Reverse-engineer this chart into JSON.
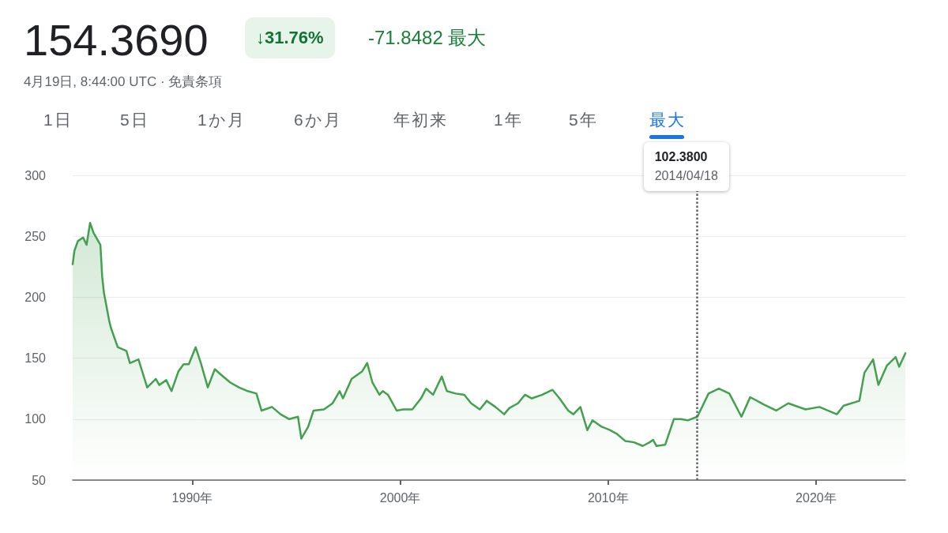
{
  "chart_data": {
    "type": "area",
    "title": "154.3690",
    "subtitle": "4月19日, 8:44:00 UTC · 免責条項",
    "annotations": [
      "↓31.76%",
      "-71.8482 最大",
      "1日",
      "5日",
      "1か月",
      "6か月",
      "年初来",
      "1年",
      "5年",
      "最大",
      "102.3800"
    ],
    "x": [
      "1984-04",
      "1984-05",
      "1984-07",
      "1984-10",
      "1984-12",
      "1985-02",
      "1985-04",
      "1985-06",
      "1985-08",
      "1985-09",
      "1985-10",
      "1986-01",
      "1986-02",
      "1986-06",
      "1986-11",
      "1987-01",
      "1987-06",
      "1987-11",
      "1988-04",
      "1988-06",
      "1988-10",
      "1989-01",
      "1989-05",
      "1989-08",
      "1989-11",
      "1990-03",
      "1990-06",
      "1990-10",
      "1991-02",
      "1991-06",
      "1991-11",
      "1992-04",
      "1992-09",
      "1993-02",
      "1993-05",
      "1993-11",
      "1994-04",
      "1994-09",
      "1995-02",
      "1995-04",
      "1995-08",
      "1995-11",
      "1996-05",
      "1996-10",
      "1997-02",
      "1997-04",
      "1997-09",
      "1998-03",
      "1998-06",
      "1998-09",
      "1999-01",
      "1999-03",
      "1999-06",
      "1999-11",
      "2000-03",
      "2000-08",
      "2001-01",
      "2001-04",
      "2001-08",
      "2002-01",
      "2002-04",
      "2002-09",
      "2003-02",
      "2003-06",
      "2003-11",
      "2004-03",
      "2004-08",
      "2005-01",
      "2005-04",
      "2005-09",
      "2006-01",
      "2006-05",
      "2006-11",
      "2007-05",
      "2007-09",
      "2008-02",
      "2008-05",
      "2008-09",
      "2009-01",
      "2009-04",
      "2009-09",
      "2010-02",
      "2010-06",
      "2010-11",
      "2011-04",
      "2011-09",
      "2012-01",
      "2012-03",
      "2012-05",
      "2012-10",
      "2013-03",
      "2013-07",
      "2013-11",
      "2014-04-18",
      "2014-11",
      "2015-05",
      "2015-11",
      "2016-06",
      "2016-11",
      "2017-07",
      "2018-02",
      "2018-09",
      "2019-07",
      "2020-03",
      "2021-01",
      "2021-05",
      "2022-02",
      "2022-05",
      "2022-10",
      "2023-01",
      "2023-06",
      "2023-11",
      "2024-01",
      "2024-04-19"
    ],
    "series": [
      {
        "color": "#43a04e",
        "values": [
          227,
          238,
          246,
          249,
          243,
          261,
          253,
          248,
          243,
          217,
          204,
          181,
          175,
          159,
          156,
          146,
          149,
          126,
          133,
          128,
          132,
          123,
          139,
          145,
          145,
          159,
          146,
          126,
          141,
          136,
          130,
          126,
          123,
          121,
          107,
          110,
          104,
          100,
          102,
          84,
          94,
          107,
          108,
          113,
          123,
          117,
          133,
          139,
          146,
          130,
          120,
          123,
          120,
          107,
          108,
          108,
          117,
          125,
          120,
          135,
          123,
          121,
          120,
          113,
          108,
          115,
          110,
          104,
          109,
          113,
          120,
          117,
          120,
          124,
          117,
          107,
          104,
          110,
          91,
          99,
          94,
          91,
          88,
          82,
          81,
          78,
          81,
          83,
          78,
          79,
          100,
          100,
          99,
          102,
          121,
          125,
          121,
          102,
          118,
          112,
          107,
          113,
          108,
          110,
          104,
          111,
          115,
          138,
          149,
          128,
          144,
          151,
          143,
          154
        ]
      }
    ],
    "ylim": [
      50,
      300
    ],
    "yticks": [
      50,
      100,
      150,
      200,
      250,
      300
    ],
    "xlim": [
      "1984-04",
      "2024-04-19"
    ],
    "xticks": [
      {
        "value": "1990-01",
        "label": "1990年"
      },
      {
        "value": "2000-01",
        "label": "2000年"
      },
      {
        "value": "2010-01",
        "label": "2010年"
      },
      {
        "value": "2020-01",
        "label": "2020年"
      }
    ],
    "ref_lines": [
      {
        "axis": "x",
        "value": "2014-04-18",
        "label": "2014/04/18",
        "color": "#5f6368",
        "line_style": "dotted"
      }
    ],
    "grid": "y",
    "marker": "none",
    "line_style": "solid"
  }
}
